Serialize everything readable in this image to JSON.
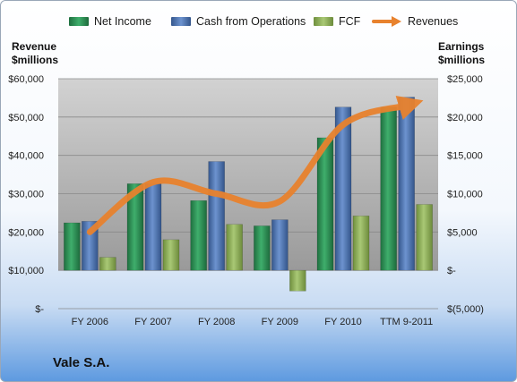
{
  "chart_data": {
    "type": "bar",
    "company": "Vale S.A.",
    "categories": [
      "FY 2006",
      "FY 2007",
      "FY 2008",
      "FY 2009",
      "FY 2010",
      "TTM 9-2011"
    ],
    "left_axis": {
      "title_line1": "Revenue",
      "title_line2": "$millions",
      "ticks": [
        "$-",
        "$10,000",
        "$20,000",
        "$30,000",
        "$40,000",
        "$50,000",
        "$60,000"
      ],
      "ylim": [
        0,
        60000
      ]
    },
    "right_axis": {
      "title_line1": "Earnings",
      "title_line2": "$millions",
      "ticks": [
        "$(5,000)",
        "$-",
        "$5,000",
        "$10,000",
        "$15,000",
        "$20,000",
        "$25,000"
      ],
      "ylim": [
        -5000,
        25000
      ]
    },
    "series": [
      {
        "name": "Net Income",
        "type": "bar",
        "axis": "right",
        "color": "#2e8b57",
        "values": [
          6200,
          11300,
          9100,
          5800,
          17300,
          21300
        ]
      },
      {
        "name": "Cash from Operations",
        "type": "bar",
        "axis": "right",
        "color": "#4a6fa8",
        "values": [
          6400,
          11300,
          14200,
          6600,
          21300,
          22600
        ]
      },
      {
        "name": "FCF",
        "type": "bar",
        "axis": "right",
        "color": "#8fae5a",
        "values": [
          1700,
          4000,
          6000,
          -2700,
          7100,
          8600
        ]
      },
      {
        "name": "Revenues",
        "type": "line",
        "axis": "left",
        "color": "#e8822e",
        "values": [
          20000,
          33000,
          30000,
          28000,
          48000,
          53000
        ]
      }
    ],
    "grid": true,
    "legend": "top"
  }
}
